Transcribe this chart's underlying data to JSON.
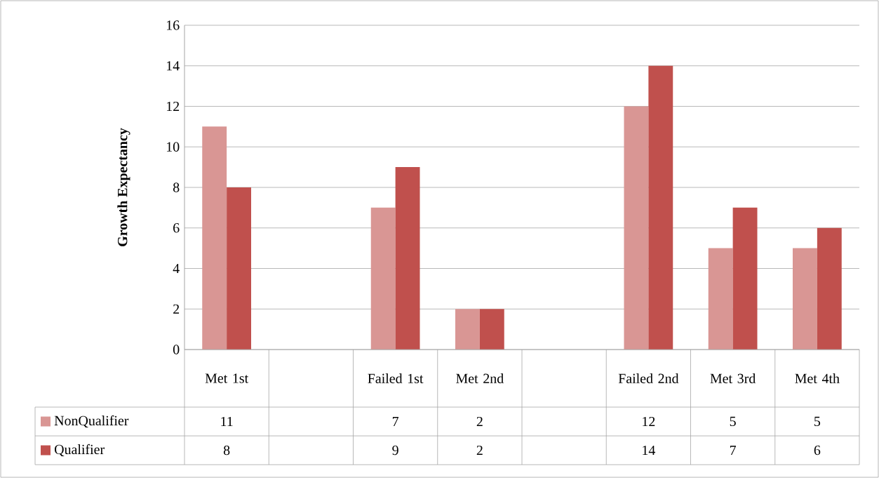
{
  "chart_data": {
    "type": "bar",
    "ylabel": "Growth Expectancy",
    "categories": [
      "Met 1st",
      null,
      "Failed 1st",
      "Met 2nd",
      null,
      "Failed 2nd",
      "Met 3rd",
      "Met 4th"
    ],
    "series": [
      {
        "name": "NonQualifier",
        "color": "#d99694",
        "values": [
          11,
          null,
          7,
          2,
          null,
          12,
          5,
          5
        ]
      },
      {
        "name": "Qualifier",
        "color": "#c0504d",
        "values": [
          8,
          null,
          9,
          2,
          null,
          14,
          7,
          6
        ]
      }
    ],
    "ylim": [
      0,
      16
    ],
    "yticks": [
      0,
      2,
      4,
      6,
      8,
      10,
      12,
      14,
      16
    ],
    "grid": "y",
    "legend": "bottom left",
    "data_labels": true
  }
}
